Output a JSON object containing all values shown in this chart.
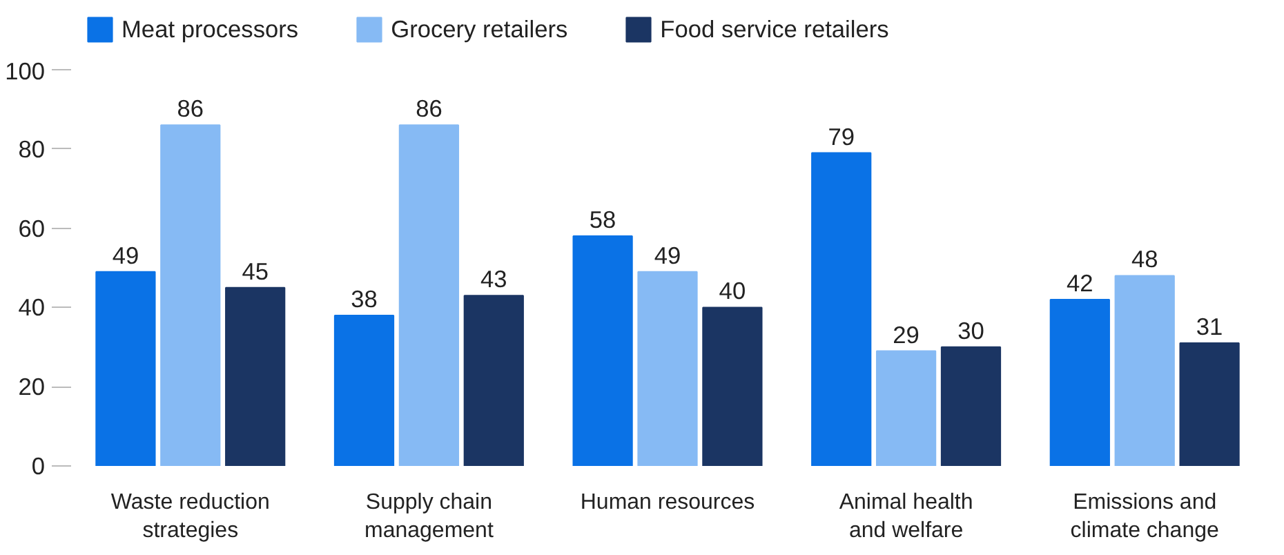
{
  "chart_data": {
    "type": "bar",
    "categories": [
      "Waste reduction strategies",
      "Supply chain management",
      "Human resources",
      "Animal health and welfare",
      "Emissions and climate change"
    ],
    "series": [
      {
        "name": "Meat processors",
        "color": "#0a72e6",
        "values": [
          49,
          38,
          58,
          79,
          42
        ]
      },
      {
        "name": "Grocery retailers",
        "color": "#86baf4",
        "values": [
          86,
          86,
          49,
          29,
          48
        ]
      },
      {
        "name": "Food service retailers",
        "color": "#1b3563",
        "values": [
          45,
          43,
          40,
          30,
          31
        ]
      }
    ],
    "ylim": [
      0,
      100
    ],
    "yticks": [
      0,
      20,
      40,
      60,
      80,
      100
    ],
    "grid": false,
    "legend": "top left",
    "data_labels": true
  }
}
